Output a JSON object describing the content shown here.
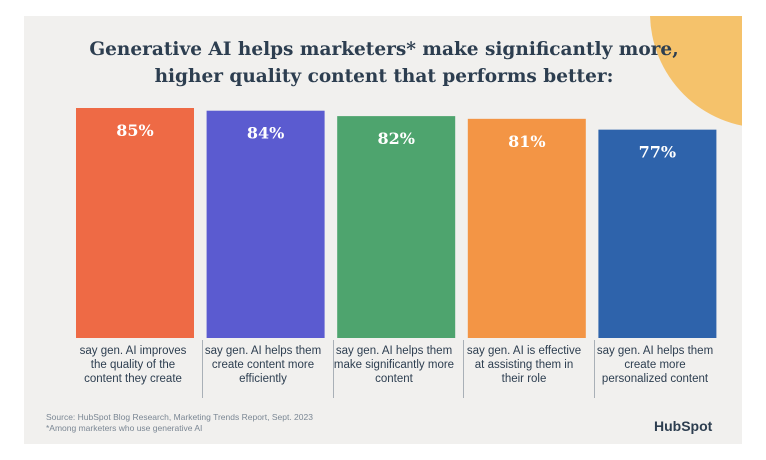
{
  "title": "Generative AI helps marketers* make significantly more, higher quality content that performs better:",
  "chart_data": {
    "type": "bar",
    "title": "Generative AI helps marketers* make significantly more, higher quality content that performs better:",
    "categories": [
      "say gen. AI improves the quality of the content they create",
      "say gen. AI helps them create content more efficiently",
      "say gen. AI helps them make significantly more content",
      "say gen. AI is effective at assisting them in their role",
      "say gen. AI helps them create more personalized content"
    ],
    "values": [
      85,
      84,
      82,
      81,
      77
    ],
    "value_labels": [
      "85%",
      "84%",
      "82%",
      "81%",
      "77%"
    ],
    "colors": [
      "#ee6a45",
      "#5b5bd0",
      "#4ea46e",
      "#f39545",
      "#2e63ab"
    ],
    "ylim": [
      0,
      85
    ],
    "xlabel": "",
    "ylabel": "",
    "grid": false
  },
  "captions": [
    "say gen. AI improves the quality of the content they create",
    "say gen. AI helps them create content more efficiently",
    "say gen. AI helps them make significantly more content",
    "say gen. AI is effective at assisting them in their role",
    "say gen. AI helps them create more personalized content"
  ],
  "source": {
    "line1": "Source: HubSpot Blog Research, Marketing Trends Report, Sept. 2023",
    "line2": "*Among marketers who use generative AI"
  },
  "brand": "HubSpot",
  "colors": {
    "background": "#f1f0ee",
    "accent_circle": "#f5c26b",
    "text": "#2d3e50"
  }
}
